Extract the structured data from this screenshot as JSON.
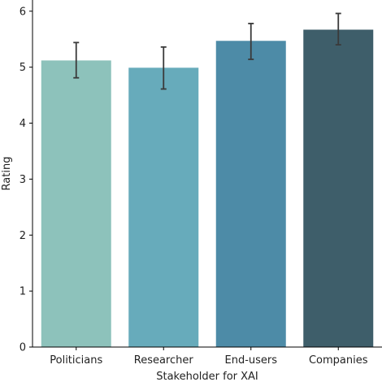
{
  "chart_data": {
    "type": "bar",
    "xlabel": "Stakeholder for XAI",
    "ylabel": "Rating",
    "ylim": [
      0,
      6.2
    ],
    "yticks": [
      0,
      1,
      2,
      3,
      4,
      5,
      6
    ],
    "grid": false,
    "categories": [
      "Politicians",
      "Researcher",
      "End-users",
      "Companies"
    ],
    "values": [
      5.12,
      4.99,
      5.47,
      5.67
    ],
    "error_low": [
      4.81,
      4.61,
      5.14,
      5.4
    ],
    "error_high": [
      5.44,
      5.36,
      5.78,
      5.96
    ],
    "colors": [
      "#8dc2bb",
      "#67abbb",
      "#4d8ba7",
      "#3e5e6a"
    ],
    "error_color": "#3a3a3a"
  }
}
